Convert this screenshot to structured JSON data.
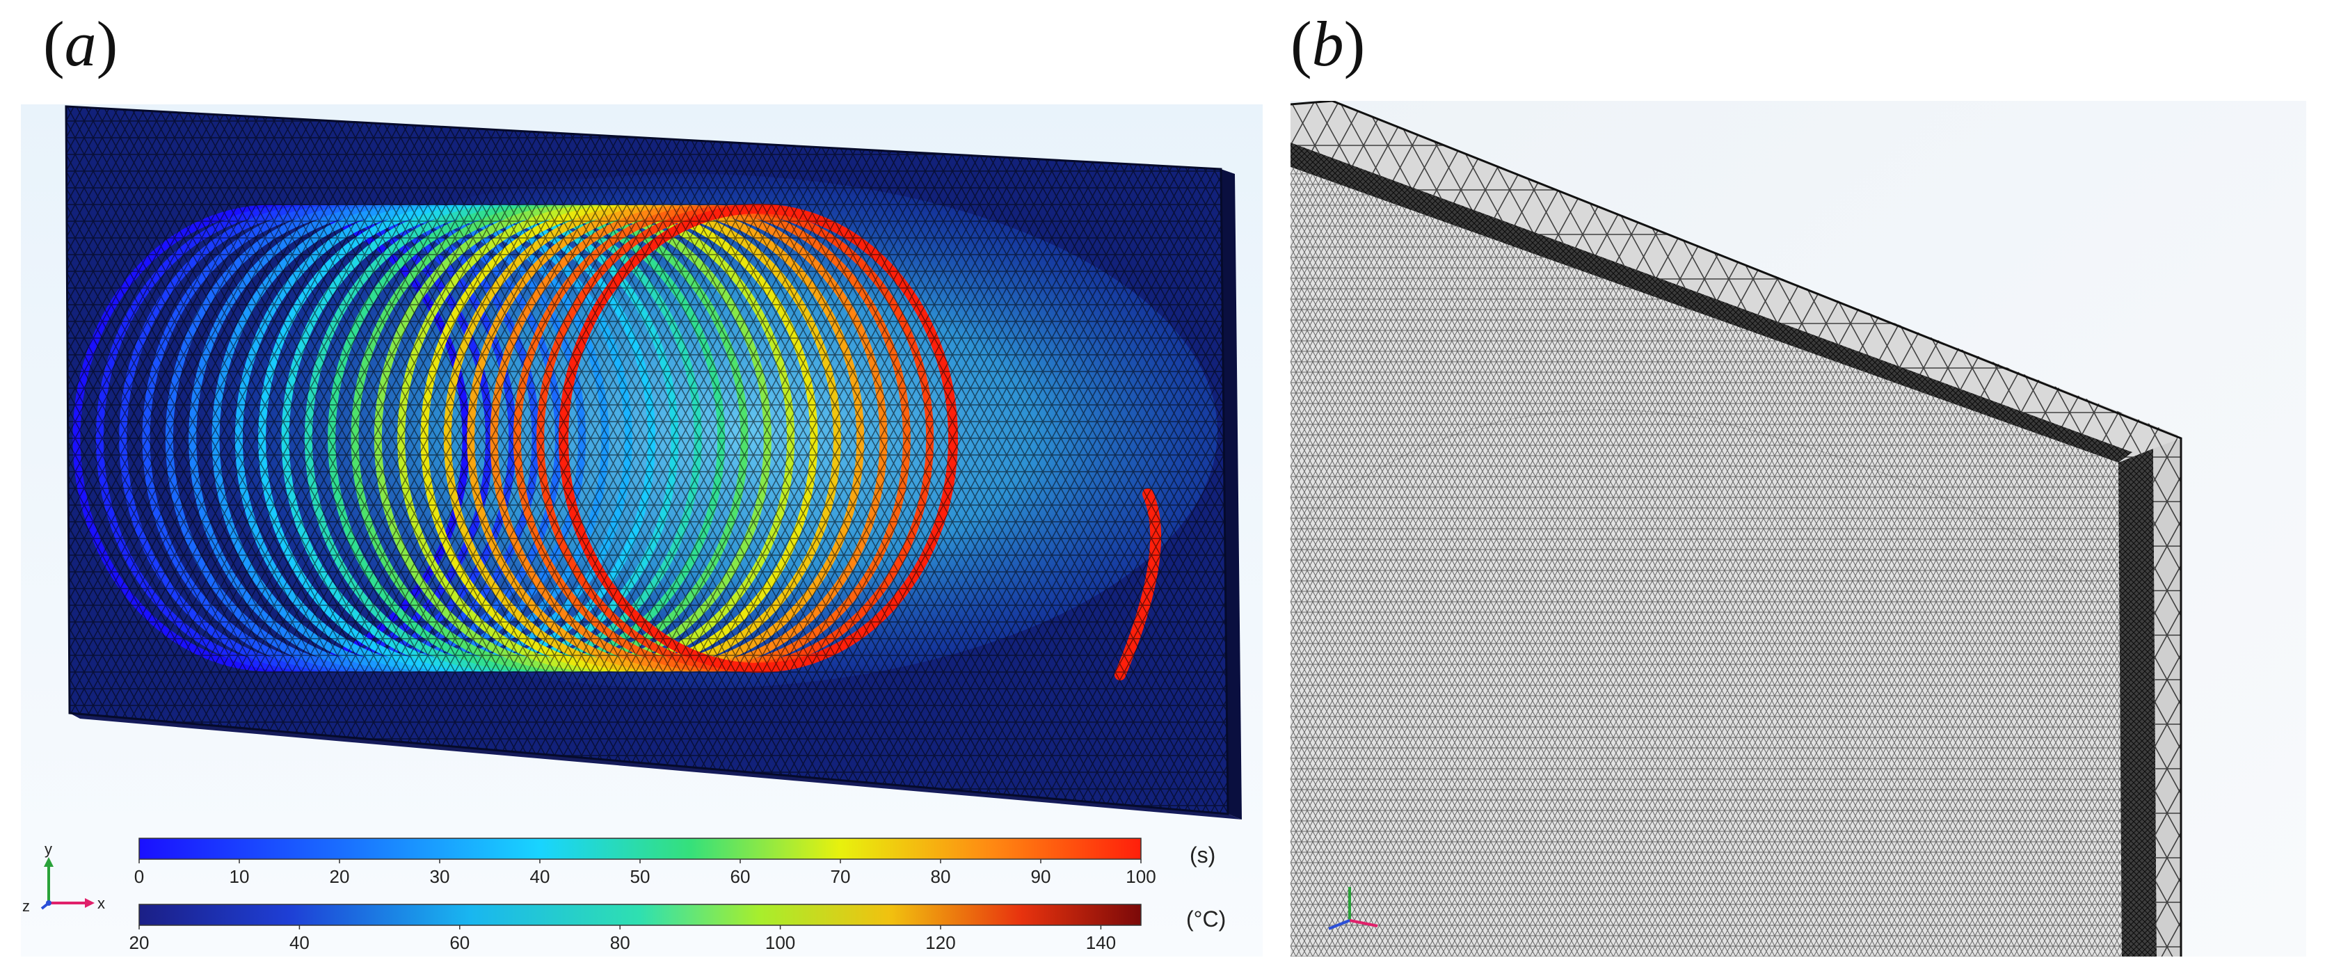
{
  "panel_a": {
    "label_open": "(",
    "label_letter": "a",
    "label_close": ")",
    "colorbar_time": {
      "ticks": [
        "0",
        "10",
        "20",
        "30",
        "40",
        "50",
        "60",
        "70",
        "80",
        "90",
        "100"
      ],
      "unit": "(s)",
      "range": [
        0,
        100
      ]
    },
    "colorbar_temp": {
      "ticks": [
        "20",
        "40",
        "60",
        "80",
        "100",
        "120",
        "140"
      ],
      "unit": "(°C)",
      "range": [
        20,
        145
      ]
    },
    "axes_triad": {
      "y": "y",
      "x": "x",
      "z": "z"
    },
    "colors": {
      "time_low": "#0a1aff",
      "time_high": "#ff1a00",
      "temp_low": "#1a1a8a",
      "temp_high": "#7a0a0a",
      "background": "#f2f8fd"
    }
  },
  "panel_b": {
    "label_open": "(",
    "label_letter": "b",
    "label_close": ")",
    "colors": {
      "mesh_face": "#e4e4e4",
      "mesh_edge": "#d2d2d2",
      "background": "#f4f8fb"
    }
  }
}
